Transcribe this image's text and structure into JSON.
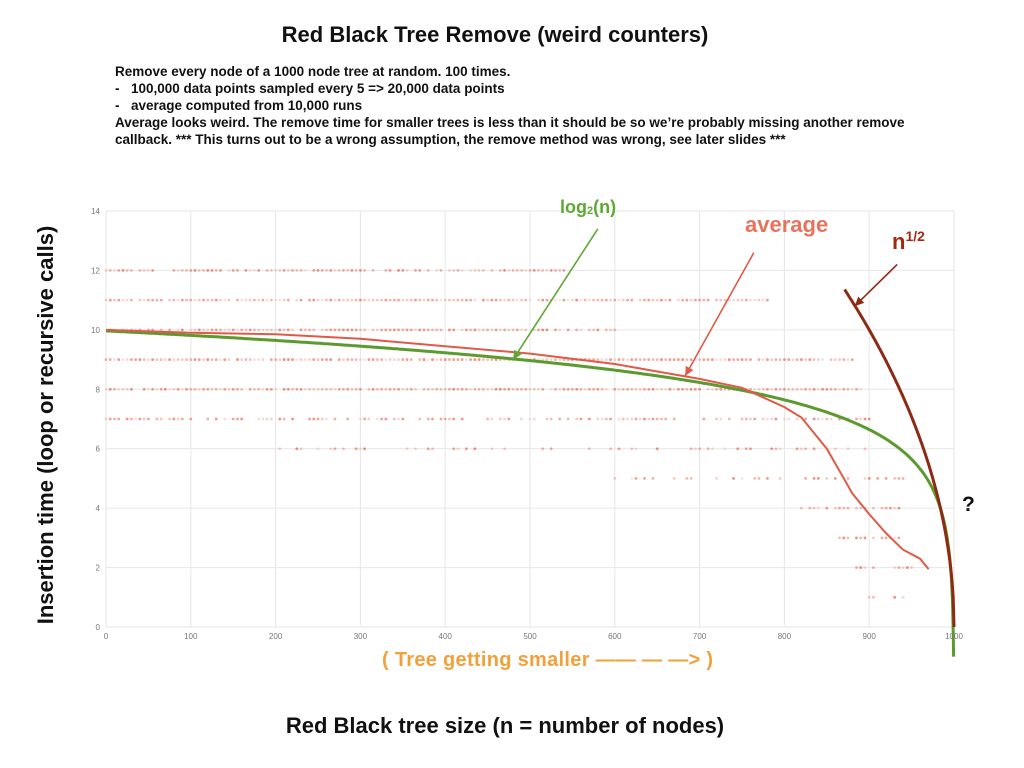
{
  "slide": {
    "title": "Red Black Tree Remove (weird counters)",
    "notes": {
      "line1": "Remove every node of a 1000 node tree at random. 100 times.",
      "bullets": [
        "100,000 data points sampled every 5 => 20,000 data points",
        "average computed from 10,000 runs"
      ],
      "bullet_mark": "-",
      "line2": "Average looks weird. The remove time for smaller trees is less than it should be so we’re probably missing another remove callback. *** This turns out to be a wrong assumption, the remove method was wrong, see later slides ***"
    },
    "direction_note": "( Tree getting smaller —— — —> )",
    "question_mark": "?"
  },
  "annotations": {
    "log_prefix": "log",
    "log_sub": "2",
    "log_suffix": "(n)",
    "average": "average",
    "sqrt_base": "n",
    "sqrt_exp": "1/2"
  },
  "colors": {
    "log_curve": "#5A9A2E",
    "log_label": "#5FA833",
    "average_curve": "#E05A48",
    "average_label": "#E8735D",
    "sqrt_curve": "#8E2A14",
    "sqrt_label": "#A12A12",
    "scatter": "#E8634F",
    "direction_note": "#F2A13A"
  },
  "chart_data": {
    "type": "scatter",
    "title": "",
    "xlabel": "Red Black tree size (n = number of nodes)",
    "ylabel": "Insertion time (loop or recursive calls)",
    "xlim": [
      0,
      1000
    ],
    "ylim": [
      0,
      14
    ],
    "xticks": [
      0,
      100,
      200,
      300,
      400,
      500,
      600,
      700,
      800,
      900,
      1000
    ],
    "yticks": [
      0,
      2,
      4,
      6,
      8,
      10,
      12,
      14
    ],
    "grid": true,
    "scatter_bands": [
      {
        "y": 13,
        "x_range": [
          40,
          290
        ],
        "density": 0.05
      },
      {
        "y": 12,
        "x_range": [
          0,
          540
        ],
        "density": 0.75
      },
      {
        "y": 11,
        "x_range": [
          0,
          780
        ],
        "density": 0.95
      },
      {
        "y": 10,
        "x_range": [
          0,
          600
        ],
        "density": 0.85
      },
      {
        "y": 9,
        "x_range": [
          0,
          880
        ],
        "density": 0.95
      },
      {
        "y": 8,
        "x_range": [
          0,
          890
        ],
        "density": 0.95
      },
      {
        "y": 7,
        "x_range": [
          0,
          900
        ],
        "density": 0.6
      },
      {
        "y": 6,
        "x_range": [
          200,
          930
        ],
        "density": 0.35
      },
      {
        "y": 5,
        "x_range": [
          600,
          940
        ],
        "density": 0.4
      },
      {
        "y": 4,
        "x_range": [
          820,
          935
        ],
        "density": 0.75
      },
      {
        "y": 3,
        "x_range": [
          865,
          940
        ],
        "density": 0.7
      },
      {
        "y": 2,
        "x_range": [
          880,
          950
        ],
        "density": 0.7
      },
      {
        "y": 1,
        "x_range": [
          900,
          945
        ],
        "density": 0.5
      }
    ],
    "series": [
      {
        "name": "average",
        "x": [
          0,
          100,
          200,
          300,
          400,
          500,
          600,
          650,
          700,
          750,
          800,
          820,
          850,
          870,
          880,
          900,
          920,
          940,
          960,
          970
        ],
        "y": [
          10.0,
          9.9,
          9.85,
          9.7,
          9.45,
          9.2,
          8.85,
          8.6,
          8.35,
          8.05,
          7.4,
          7.05,
          6.0,
          5.0,
          4.5,
          3.8,
          3.15,
          2.6,
          2.3,
          1.95
        ]
      },
      {
        "name": "log2(n)",
        "function": "log2(1000 - x)",
        "x_range": [
          0,
          999.5
        ]
      },
      {
        "name": "n^(1/2)",
        "function": "sqrt(1000 - x)",
        "x_range": [
          871,
          1000
        ]
      }
    ],
    "arrows": [
      {
        "label": "log2(n)",
        "from": [
          580,
          13.4
        ],
        "to": [
          480,
          9.0
        ]
      },
      {
        "label": "average",
        "from": [
          764,
          12.6
        ],
        "to": [
          683,
          8.45
        ]
      },
      {
        "label": "n^(1/2)",
        "from": [
          933,
          12.2
        ],
        "to": [
          883,
          10.8
        ]
      }
    ]
  }
}
